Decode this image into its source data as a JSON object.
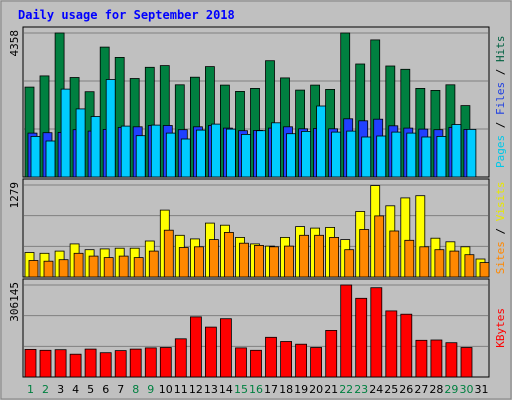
{
  "chart_data": {
    "type": "bar",
    "title": "Daily usage for September 2018",
    "days": [
      "1",
      "2",
      "3",
      "4",
      "5",
      "6",
      "7",
      "8",
      "9",
      "10",
      "11",
      "12",
      "13",
      "14",
      "15",
      "16",
      "17",
      "18",
      "19",
      "20",
      "21",
      "22",
      "23",
      "24",
      "25",
      "26",
      "27",
      "28",
      "29",
      "30",
      "31"
    ],
    "weekend_days": [
      "1",
      "2",
      "8",
      "9",
      "15",
      "16",
      "22",
      "23",
      "29",
      "30"
    ],
    "panels": [
      {
        "id": "hits",
        "max_label": "4358",
        "ymax": 4358,
        "axis_labels": [
          {
            "text": "Pages",
            "color": "#00c8e8"
          },
          {
            "text": "Files",
            "color": "#2040e0"
          },
          {
            "text": "Hits",
            "color": "#006040"
          }
        ],
        "series": [
          {
            "name": "Hits",
            "color": "#008040",
            "values": [
              2720,
              3060,
              4358,
              3010,
              2580,
              3930,
              3620,
              2980,
              3320,
              3370,
              2790,
              3020,
              3340,
              2780,
              2590,
              2680,
              3520,
              3000,
              2630,
              2780,
              2650,
              4358,
              3420,
              4150,
              3360,
              3260,
              2680,
              2620,
              2790,
              2160,
              0
            ]
          },
          {
            "name": "Files",
            "color": "#2040ff",
            "values": [
              1330,
              1340,
              1350,
              1430,
              1390,
              1440,
              1500,
              1520,
              1560,
              1560,
              1430,
              1520,
              1560,
              1480,
              1400,
              1410,
              1480,
              1520,
              1460,
              1470,
              1460,
              1760,
              1700,
              1750,
              1550,
              1480,
              1450,
              1430,
              1500,
              1440,
              0
            ]
          },
          {
            "name": "Pages",
            "color": "#00ccff",
            "values": [
              1230,
              1090,
              2660,
              2060,
              1830,
              2950,
              1540,
              1250,
              1570,
              1330,
              1150,
              1420,
              1600,
              1450,
              1290,
              1400,
              1640,
              1310,
              1380,
              2150,
              1360,
              1390,
              1210,
              1240,
              1360,
              1330,
              1210,
              1230,
              1590,
              1440,
              0
            ]
          }
        ]
      },
      {
        "id": "visits",
        "max_label": "1279",
        "ymax": 1279,
        "axis_labels": [
          {
            "text": "Sites",
            "color": "#ff8800"
          },
          {
            "text": "Visits",
            "color": "#e8e800"
          }
        ],
        "series": [
          {
            "name": "Visits",
            "color": "#ffff00",
            "values": [
              340,
              330,
              360,
              460,
              380,
              390,
              400,
              400,
              500,
              930,
              580,
              530,
              750,
              720,
              550,
              460,
              430,
              550,
              700,
              680,
              690,
              520,
              910,
              1270,
              990,
              1100,
              1130,
              540,
              490,
              420,
              250
            ]
          },
          {
            "name": "Sites",
            "color": "#ff8800",
            "values": [
              230,
              220,
              240,
              330,
              290,
              270,
              290,
              270,
              360,
              650,
              410,
              420,
              520,
              620,
              470,
              440,
              420,
              430,
              580,
              580,
              550,
              380,
              660,
              850,
              640,
              510,
              420,
              380,
              360,
              310,
              200
            ]
          }
        ]
      },
      {
        "id": "kbytes",
        "max_label": "306145",
        "ymax": 306145,
        "axis_labels": [
          {
            "text": "KBytes",
            "color": "#ff0000"
          }
        ],
        "series": [
          {
            "name": "KBytes",
            "color": "#ff0000",
            "values": [
              92000,
              89000,
              91000,
              76000,
              93000,
              81000,
              88000,
              93000,
              97000,
              98000,
              127000,
              200000,
              166000,
              194000,
              97000,
              89000,
              132000,
              118000,
              109000,
              98000,
              155000,
              306145,
              262000,
              297000,
              220000,
              209000,
              122000,
              123000,
              114000,
              98000,
              0
            ]
          }
        ]
      }
    ]
  }
}
